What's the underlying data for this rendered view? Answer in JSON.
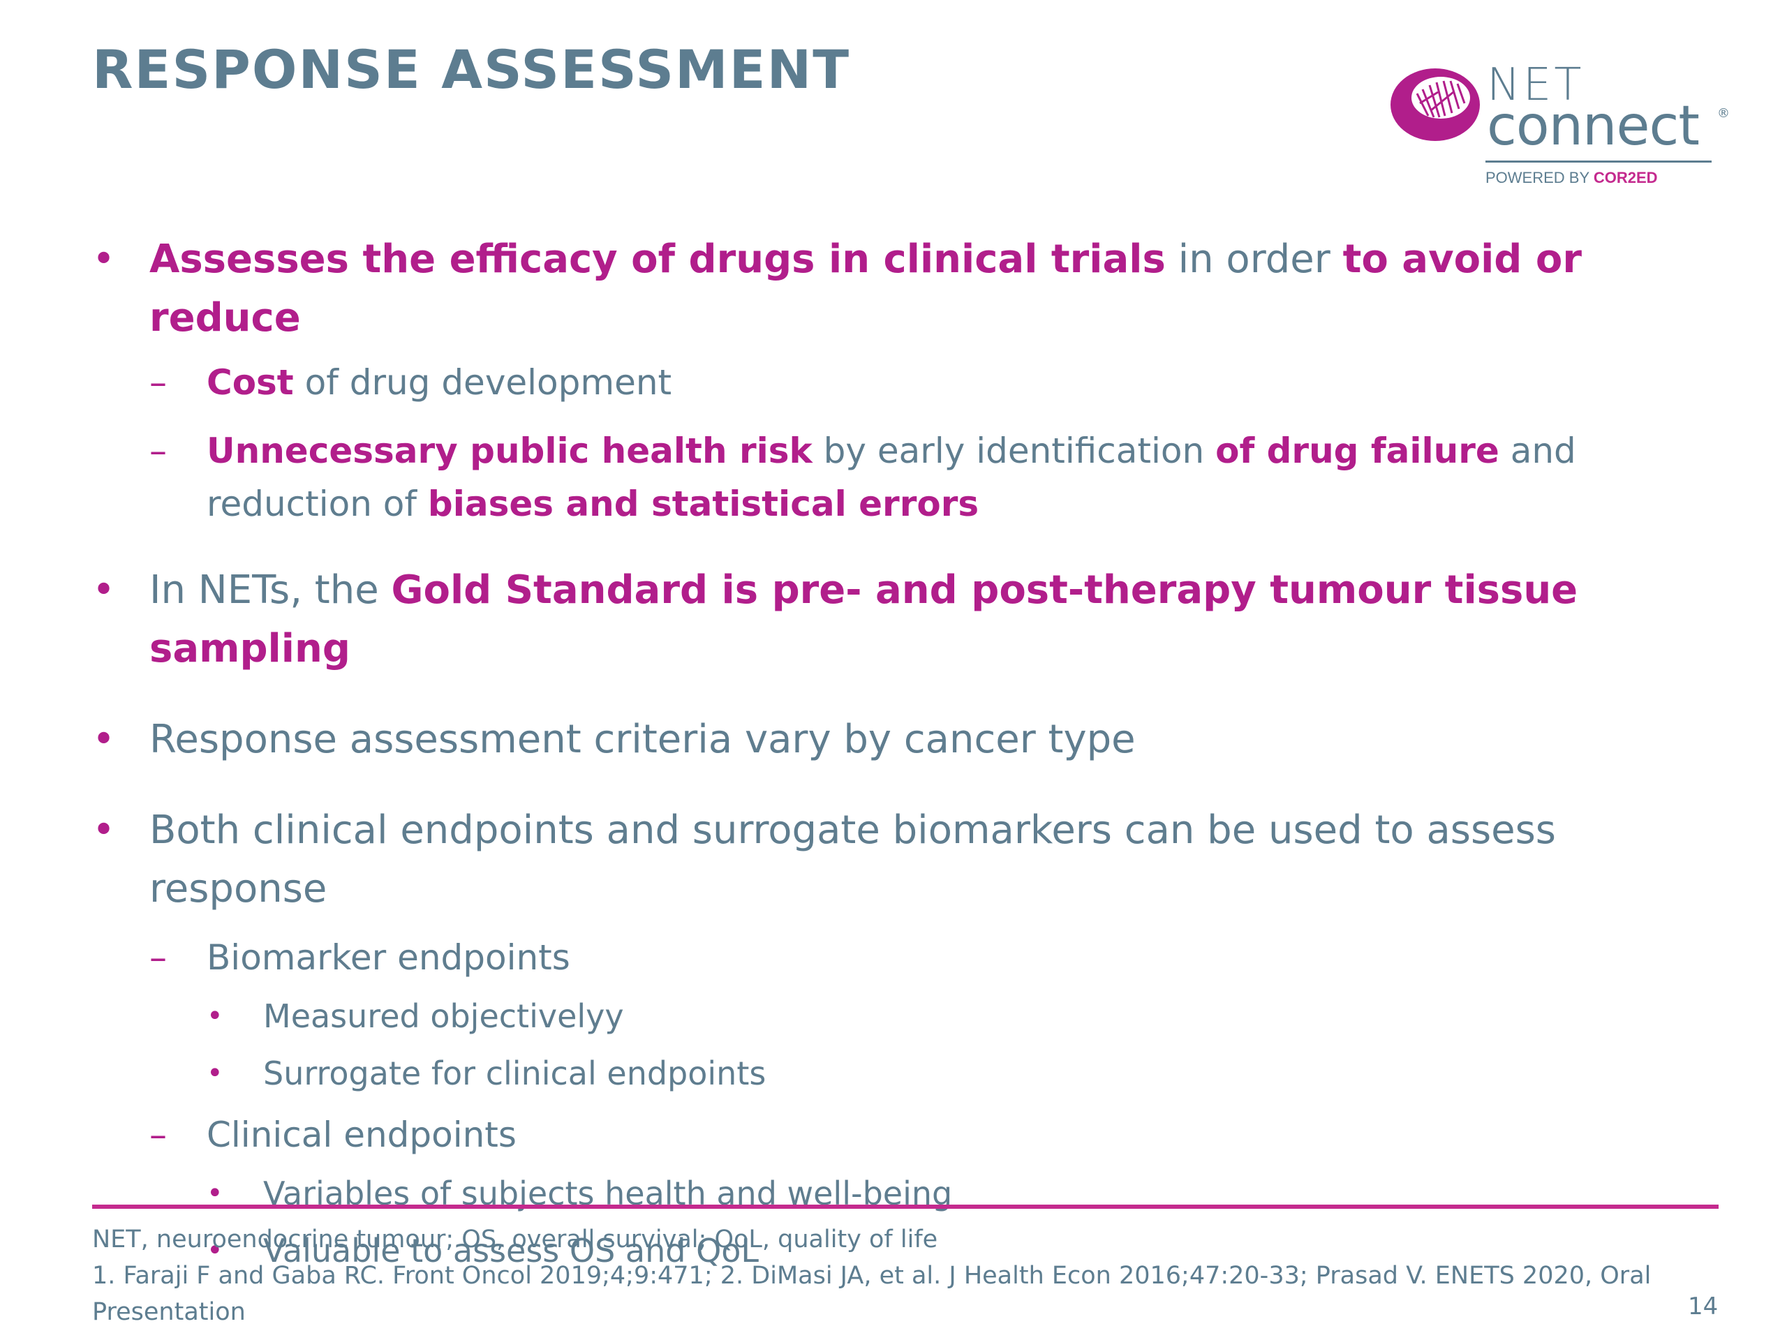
{
  "slide": {
    "title": "RESPONSE ASSESSMENT",
    "page_number": "14"
  },
  "logo": {
    "line1": "NET",
    "line2": "connect",
    "registered": "®",
    "powered_prefix": "POWERED BY ",
    "powered_brand": "COR2ED"
  },
  "content": {
    "b1": {
      "p1": "Assesses the efficacy of drugs in clinical trials",
      "p2": " in order ",
      "p3": "to avoid or reduce"
    },
    "b1_sub1": {
      "p1": "Cost",
      "p2": " of drug development"
    },
    "b1_sub2": {
      "p1": "Unnecessary public health risk",
      "p2": " by early identification ",
      "p3": "of drug failure",
      "p4": " and reduction of ",
      "p5": "biases and statistical errors"
    },
    "b2": {
      "p1": "In NETs, the ",
      "p2": "Gold Standard is pre- and post-therapy tumour tissue sampling"
    },
    "b3": "Response assessment criteria vary by cancer type",
    "b4": "Both clinical endpoints and surrogate biomarkers can be used to assess response",
    "b4_sub1": "Biomarker endpoints",
    "b4_sub1_items": [
      "Measured objectivelyy",
      "Surrogate for clinical endpoints"
    ],
    "b4_sub2": "Clinical endpoints",
    "b4_sub2_items": [
      "Variables of subjects health and well-being",
      "Valuable to assess OS and QoL"
    ]
  },
  "footer": {
    "abbreviations": "NET, neuroendocrine tumour; OS, overall survival; QoL, quality of life",
    "references": "1. Faraji F and Gaba RC. Front Oncol 2019;4;9:471; 2. DiMasi JA, et al. J Health Econ 2016;47:20-33; Prasad V. ENETS 2020, Oral Presentation"
  },
  "symbols": {
    "bullet": "•",
    "dash": "–"
  },
  "colors": {
    "accent": "#b11e8b",
    "text": "#5f7d8f",
    "rule": "#c42a8e"
  }
}
